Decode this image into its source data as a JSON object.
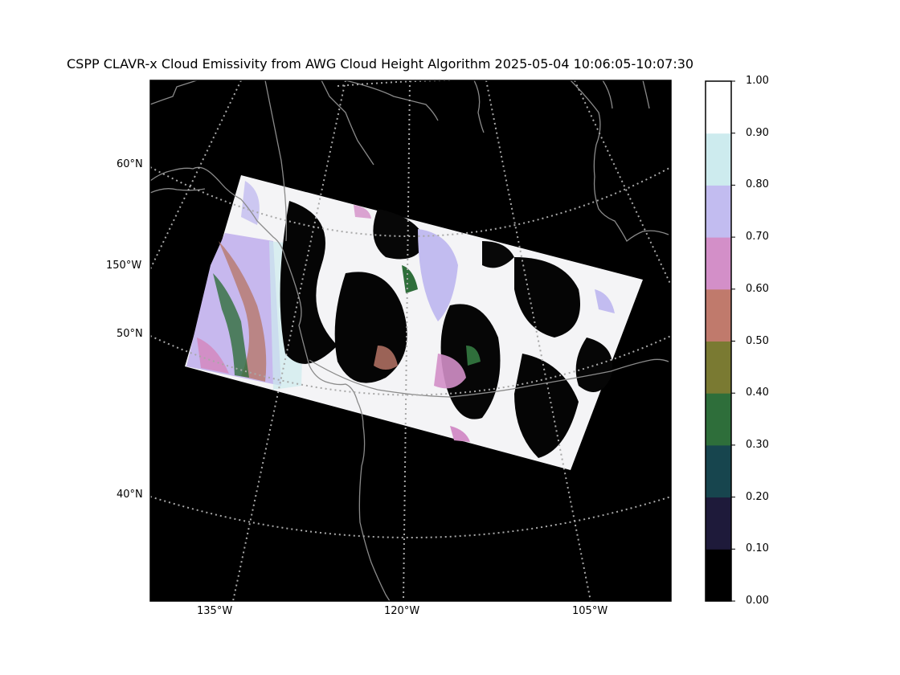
{
  "title": "CSPP CLAVR-x Cloud Emissivity from AWG Cloud Height Algorithm 2025-05-04 10:06:05-10:07:30",
  "map": {
    "projection": "conic (curved parallels, converging meridians)",
    "background_color": "#000000",
    "coastline_color": "#8a8a8a",
    "graticule_color": "#b0b0b0",
    "latitude_labels": [
      "60°N",
      "50°N",
      "40°N"
    ],
    "meridian_labels_left": [
      "150°W"
    ],
    "longitude_labels_bottom": [
      "135°W",
      "120°W",
      "105°W"
    ]
  },
  "colorbar": {
    "ticks": [
      "0.00",
      "0.10",
      "0.20",
      "0.30",
      "0.40",
      "0.50",
      "0.60",
      "0.70",
      "0.80",
      "0.90",
      "1.00"
    ],
    "colors": [
      "#000000",
      "#1e1a3a",
      "#17454e",
      "#2e6e3a",
      "#7a7a32",
      "#c07a6c",
      "#d38fc8",
      "#c2bcf0",
      "#cdebee",
      "#ffffff"
    ]
  }
}
